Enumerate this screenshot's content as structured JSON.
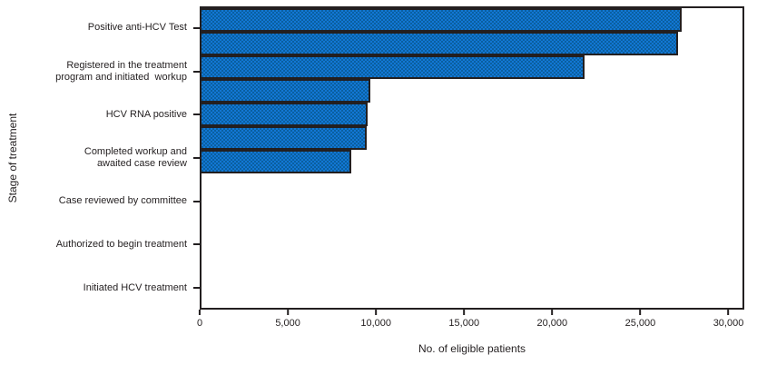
{
  "figure": {
    "background_color": "#ffffff",
    "text_color": "#231f20",
    "axis_color": "#231f20"
  },
  "chart_data": {
    "type": "bar",
    "orientation": "horizontal",
    "title": "",
    "xlabel": "No. of eligible patients",
    "ylabel": "Stage of treatment",
    "categories": [
      "Positive anti-HCV Test",
      "Registered in the treatment\nprogram and initiated  workup",
      "HCV RNA positive",
      "Completed workup and\nawaited case review",
      "Case reviewed by committee",
      "Authorized to begin treatment",
      "Initiated HCV treatment"
    ],
    "values": [
      27450,
      27200,
      21900,
      9650,
      9500,
      9450,
      8550
    ],
    "xlim": [
      0,
      30900
    ],
    "x_ticks": [
      {
        "value": 0,
        "label": "0"
      },
      {
        "value": 5000,
        "label": "5,000"
      },
      {
        "value": 10000,
        "label": "10,000"
      },
      {
        "value": 15000,
        "label": "15,000"
      },
      {
        "value": 20000,
        "label": "20,000"
      },
      {
        "value": 25000,
        "label": "25,000"
      },
      {
        "value": 30000,
        "label": "30,000"
      }
    ],
    "grid": false,
    "legend": null,
    "bar_fill_color": "#0e6bba",
    "bar_fill_dither_light": "#1277d4",
    "bar_fill_dither_dark": "#0a5fa0",
    "bar_border_color": "#231f20"
  }
}
